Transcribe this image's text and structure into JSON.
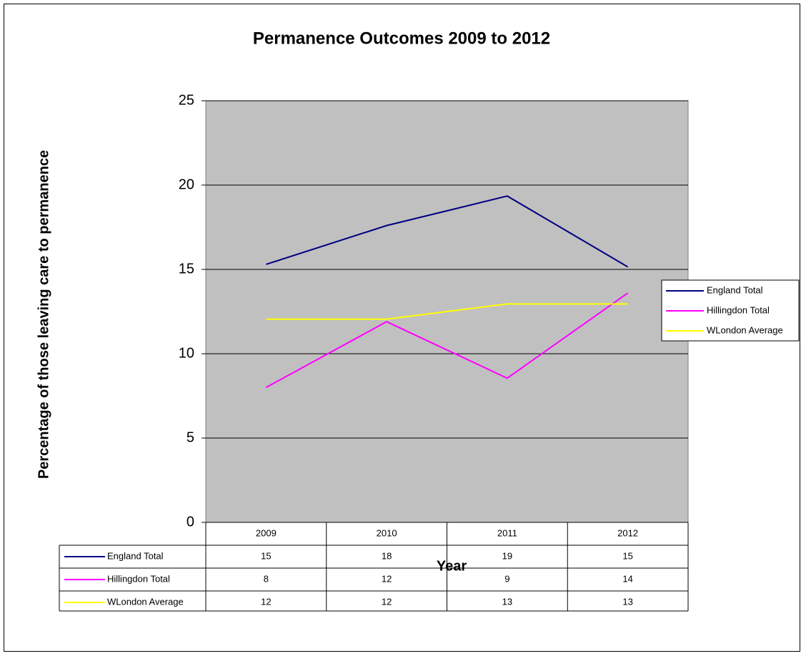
{
  "chart_data": {
    "type": "line",
    "title": "Permanence Outcomes 2009 to 2012",
    "x_label": "Year",
    "y_label": "Percentage of those leaving care to permanence",
    "categories": [
      "2009",
      "2010",
      "2011",
      "2012"
    ],
    "series": [
      {
        "name": "England Total",
        "color": "#000080",
        "values": [
          15.3,
          17.6,
          19.35,
          15.15
        ],
        "value_labels": [
          "15",
          "18",
          "19",
          "15"
        ]
      },
      {
        "name": "Hillingdon Total",
        "color": "#ff00ff",
        "values": [
          8.0,
          11.9,
          8.55,
          13.6
        ],
        "value_labels": [
          "8",
          "12",
          "9",
          "14"
        ]
      },
      {
        "name": "WLondon Average",
        "color": "#ffff00",
        "values": [
          12.05,
          12.05,
          12.95,
          12.95
        ],
        "value_labels": [
          "12",
          "12",
          "13",
          "13"
        ]
      }
    ],
    "ylim": [
      0,
      25
    ],
    "yticks": [
      0,
      5,
      10,
      15,
      20,
      25
    ],
    "grid": true,
    "plot_background": "#c0c0c0",
    "legend": "right",
    "data_table": true
  }
}
